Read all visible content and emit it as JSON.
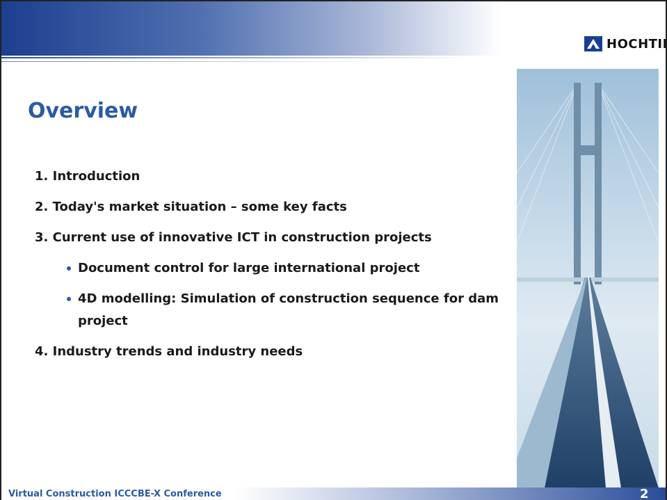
{
  "header": {
    "logo": "HOCHTIEF"
  },
  "title": "Overview",
  "items": [
    {
      "text": "1. Introduction"
    },
    {
      "text": "2. Today's market situation – some key facts"
    },
    {
      "text": "3. Current use of innovative ICT in construction projects",
      "sub": [
        "Document control for large international project",
        "4D modelling: Simulation of construction sequence for dam project"
      ]
    },
    {
      "text": "4. Industry trends and industry needs"
    }
  ],
  "footer": {
    "text": "Virtual Construction ICCCBE-X Conference",
    "page": "2"
  }
}
